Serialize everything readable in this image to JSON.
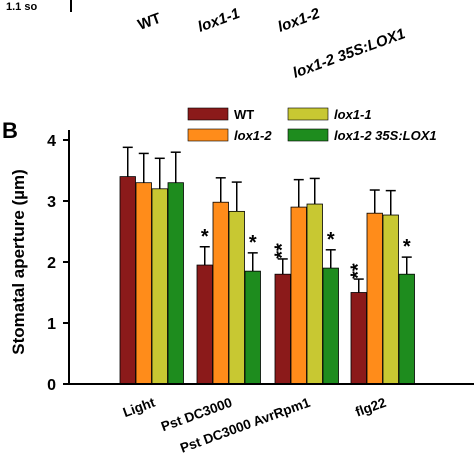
{
  "panel_a_fragment": {
    "genotype_labels": [
      "WT",
      "lox1-1",
      "lox1-2",
      "lox1-2 35S:LOX1"
    ],
    "cut_label": "1.1 so"
  },
  "panel_letter": "B",
  "chart_data": {
    "type": "bar",
    "ylabel": "Stomatal aperture (µm)",
    "ylim": [
      0,
      4
    ],
    "yticks": [
      0,
      1,
      2,
      3,
      4
    ],
    "categories": [
      "Light",
      "Pst DC3000",
      "Pst DC3000 AvrRpm1",
      "flg22"
    ],
    "legend_placement": "top",
    "series": [
      {
        "name": "WT",
        "color": "#8b1a1a",
        "values": [
          3.4,
          1.95,
          1.8,
          1.5
        ],
        "errors": [
          0.48,
          0.3,
          0.25,
          0.22
        ],
        "stars": [
          "",
          "*",
          "**",
          "**"
        ]
      },
      {
        "name": "lox1-2",
        "color": "#ff8c1a",
        "values": [
          3.3,
          2.98,
          2.9,
          2.8
        ],
        "errors": [
          0.48,
          0.4,
          0.45,
          0.38
        ],
        "stars": [
          "",
          "",
          "",
          ""
        ]
      },
      {
        "name": "lox1-1",
        "color": "#c8c832",
        "values": [
          3.2,
          2.83,
          2.95,
          2.77
        ],
        "errors": [
          0.5,
          0.48,
          0.42,
          0.4
        ],
        "stars": [
          "",
          "",
          "",
          ""
        ]
      },
      {
        "name": "lox1-2 35S:LOX1",
        "color": "#1e8c1e",
        "values": [
          3.3,
          1.85,
          1.9,
          1.8
        ],
        "errors": [
          0.5,
          0.3,
          0.3,
          0.28
        ],
        "stars": [
          "",
          "*",
          "*",
          "*"
        ]
      }
    ],
    "legend_order": [
      "WT",
      "lox1-1",
      "lox1-2",
      "lox1-2 35S:LOX1"
    ]
  }
}
